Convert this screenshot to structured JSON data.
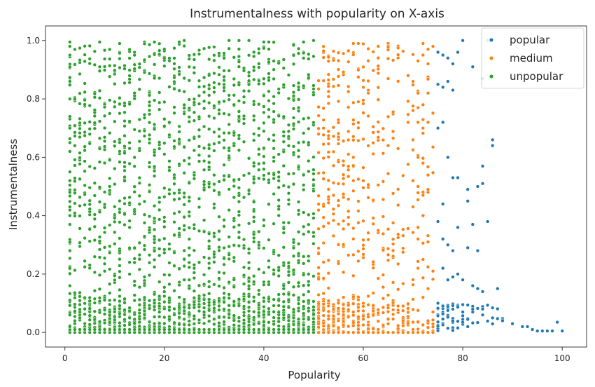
{
  "chart_data": {
    "type": "scatter",
    "title": "Instrumentalness with popularity on X-axis",
    "xlabel": "Popularity",
    "ylabel": "Instrumentalness",
    "xlim": [
      -3.9,
      104.9
    ],
    "ylim": [
      -0.05,
      1.05
    ],
    "xticks": [
      "0",
      "20",
      "40",
      "60",
      "80",
      "100"
    ],
    "yticks": [
      "0.0",
      "0.2",
      "0.4",
      "0.6",
      "0.8",
      "1.0"
    ],
    "legend_position": "top-right",
    "grid": false,
    "series": [
      {
        "name": "popular",
        "color": "#1f77b4",
        "x_range": [
          75,
          100
        ],
        "points": [
          [
            75,
            0.96
          ],
          [
            76,
            0.95
          ],
          [
            77,
            0.94
          ],
          [
            78,
            0.92
          ],
          [
            79,
            0.96
          ],
          [
            80,
            1.0
          ],
          [
            82,
            0.91
          ],
          [
            84,
            0.87
          ],
          [
            85,
            1.0
          ],
          [
            75,
            0.85
          ],
          [
            76,
            0.84
          ],
          [
            77,
            0.86
          ],
          [
            78,
            0.83
          ],
          [
            76,
            0.72
          ],
          [
            75,
            0.7
          ],
          [
            77,
            0.6
          ],
          [
            86,
            0.66
          ],
          [
            86,
            0.64
          ],
          [
            84,
            0.57
          ],
          [
            79,
            0.53
          ],
          [
            78,
            0.53
          ],
          [
            81,
            0.49
          ],
          [
            83,
            0.5
          ],
          [
            84,
            0.51
          ],
          [
            81,
            0.45
          ],
          [
            76,
            0.44
          ],
          [
            82,
            0.37
          ],
          [
            79,
            0.36
          ],
          [
            75,
            0.38
          ],
          [
            76,
            0.32
          ],
          [
            77,
            0.3
          ],
          [
            78,
            0.28
          ],
          [
            81,
            0.29
          ],
          [
            83,
            0.28
          ],
          [
            85,
            0.38
          ],
          [
            76,
            0.22
          ],
          [
            77,
            0.18
          ],
          [
            78,
            0.19
          ],
          [
            79,
            0.2
          ],
          [
            80,
            0.18
          ],
          [
            82,
            0.16
          ],
          [
            83,
            0.15
          ],
          [
            84,
            0.14
          ],
          [
            87,
            0.15
          ],
          [
            75,
            0.1
          ],
          [
            76,
            0.09
          ],
          [
            78,
            0.08
          ],
          [
            80,
            0.07
          ],
          [
            82,
            0.08
          ],
          [
            84,
            0.06
          ],
          [
            86,
            0.05
          ],
          [
            88,
            0.04
          ],
          [
            90,
            0.03
          ],
          [
            92,
            0.02
          ],
          [
            93,
            0.02
          ],
          [
            94,
            0.01
          ],
          [
            95,
            0.005
          ],
          [
            96,
            0.005
          ],
          [
            97,
            0.005
          ],
          [
            98,
            0.005
          ],
          [
            99,
            0.035
          ],
          [
            100,
            0.005
          ]
        ]
      },
      {
        "name": "medium",
        "color": "#ff7f0e",
        "x_range": [
          51,
          74
        ],
        "points": [
          [
            72,
            0.99
          ],
          [
            73,
            0.97
          ],
          [
            74,
            0.98
          ],
          [
            71,
            0.93
          ],
          [
            72,
            0.95
          ],
          [
            73,
            0.92
          ],
          [
            69,
            0.88
          ],
          [
            70,
            0.86
          ],
          [
            71,
            0.82
          ],
          [
            73,
            0.82
          ],
          [
            72,
            0.78
          ],
          [
            70,
            0.76
          ],
          [
            71,
            0.72
          ],
          [
            72,
            0.7
          ],
          [
            73,
            0.72
          ],
          [
            70,
            0.66
          ],
          [
            71,
            0.6
          ],
          [
            72,
            0.58
          ],
          [
            70,
            0.52
          ],
          [
            71,
            0.5
          ],
          [
            72,
            0.47
          ],
          [
            73,
            0.49
          ],
          [
            70,
            0.43
          ],
          [
            72,
            0.4
          ],
          [
            71,
            0.36
          ],
          [
            73,
            0.31
          ],
          [
            72,
            0.25
          ],
          [
            71,
            0.22
          ],
          [
            74,
            0.21
          ],
          [
            73,
            0.15
          ],
          [
            72,
            0.12
          ],
          [
            74,
            0.07
          ],
          [
            73,
            0.04
          ]
        ]
      },
      {
        "name": "unpopular",
        "color": "#2ca02c",
        "x_range": [
          1,
          50
        ],
        "points": [
          [
            1,
            0.98
          ],
          [
            1,
            0.95
          ],
          [
            1,
            0.91
          ],
          [
            1,
            0.86
          ],
          [
            1,
            0.8
          ],
          [
            1,
            0.74
          ],
          [
            1,
            0.7
          ],
          [
            1,
            0.65
          ],
          [
            1,
            0.62
          ],
          [
            1,
            0.55
          ],
          [
            1,
            0.52
          ],
          [
            1,
            0.48
          ],
          [
            1,
            0.43
          ],
          [
            1,
            0.37
          ],
          [
            1,
            0.31
          ],
          [
            1,
            0.28
          ],
          [
            1,
            0.22
          ],
          [
            1,
            0.16
          ],
          [
            1,
            0.11
          ],
          [
            1,
            0.06
          ],
          [
            1,
            0.02
          ],
          [
            11,
            0.99
          ],
          [
            24,
            1.0
          ],
          [
            33,
            1.0
          ],
          [
            35,
            1.0
          ],
          [
            37,
            1.0
          ],
          [
            50,
            1.0
          ],
          [
            9,
            0.75
          ],
          [
            15,
            0.69
          ]
        ]
      }
    ]
  }
}
